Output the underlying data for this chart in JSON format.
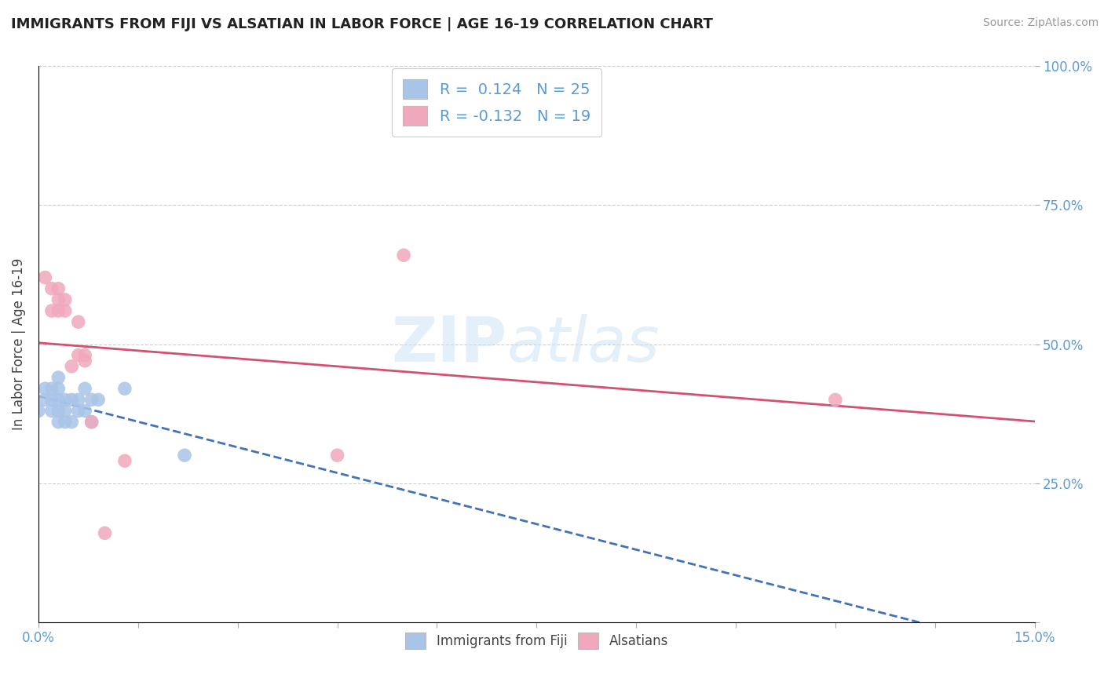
{
  "title": "IMMIGRANTS FROM FIJI VS ALSATIAN IN LABOR FORCE | AGE 16-19 CORRELATION CHART",
  "source": "Source: ZipAtlas.com",
  "ylabel_label": "In Labor Force | Age 16-19",
  "xlim": [
    0.0,
    0.15
  ],
  "ylim": [
    0.0,
    1.0
  ],
  "xticks": [
    0.0,
    0.015,
    0.03,
    0.045,
    0.06,
    0.075,
    0.09,
    0.105,
    0.12,
    0.135,
    0.15
  ],
  "ytick_positions": [
    0.0,
    0.25,
    0.5,
    0.75,
    1.0
  ],
  "ytick_labels_right": [
    "",
    "25.0%",
    "50.0%",
    "75.0%",
    "100.0%"
  ],
  "fiji_color": "#a8c4e8",
  "alsatian_color": "#f0a8bc",
  "fiji_trend_color": "#4472b8",
  "alsatian_trend_color": "#d45070",
  "fiji_r": 0.124,
  "fiji_n": 25,
  "alsatian_r": -0.132,
  "alsatian_n": 19,
  "fiji_x": [
    0.0,
    0.001,
    0.001,
    0.002,
    0.002,
    0.002,
    0.003,
    0.003,
    0.003,
    0.003,
    0.003,
    0.004,
    0.004,
    0.004,
    0.005,
    0.005,
    0.006,
    0.006,
    0.007,
    0.007,
    0.008,
    0.008,
    0.009,
    0.013,
    0.022
  ],
  "fiji_y": [
    0.38,
    0.4,
    0.42,
    0.38,
    0.4,
    0.42,
    0.36,
    0.38,
    0.4,
    0.42,
    0.44,
    0.36,
    0.38,
    0.4,
    0.36,
    0.4,
    0.38,
    0.4,
    0.38,
    0.42,
    0.36,
    0.4,
    0.4,
    0.42,
    0.3
  ],
  "alsatian_x": [
    0.001,
    0.002,
    0.002,
    0.003,
    0.003,
    0.003,
    0.004,
    0.004,
    0.005,
    0.006,
    0.006,
    0.007,
    0.007,
    0.008,
    0.01,
    0.013,
    0.045,
    0.055,
    0.12
  ],
  "alsatian_y": [
    0.62,
    0.56,
    0.6,
    0.56,
    0.58,
    0.6,
    0.56,
    0.58,
    0.46,
    0.48,
    0.54,
    0.47,
    0.48,
    0.36,
    0.16,
    0.29,
    0.3,
    0.66,
    0.4
  ],
  "watermark_zip": "ZIP",
  "watermark_atlas": "atlas",
  "background_color": "#ffffff",
  "grid_color": "#c8c8c8",
  "tick_color": "#5b9bd5",
  "legend_label_color": "#444444",
  "legend_rn_color": "#5b9bd5"
}
